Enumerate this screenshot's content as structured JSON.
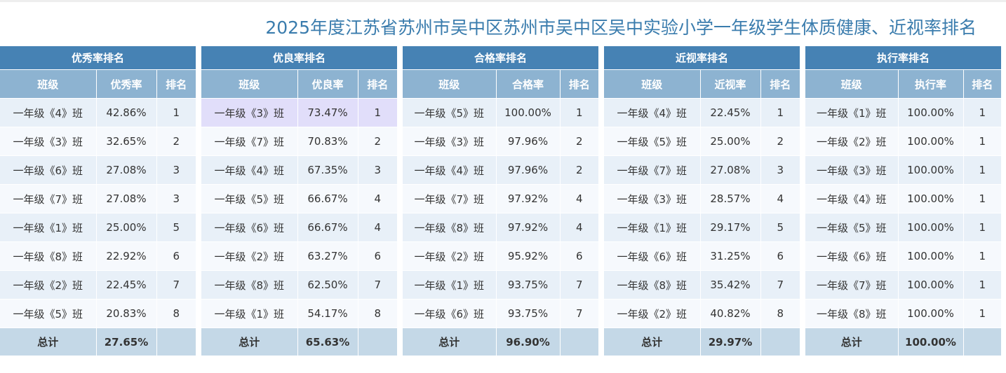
{
  "title": "2025年度江苏省苏州市吴中区苏州市吴中区吴中实验小学一年级学生体质健康、近视率排名",
  "labels": {
    "class": "班级",
    "rank": "排名",
    "total": "总计"
  },
  "tables": [
    {
      "caption": "优秀率排名",
      "value_header": "优秀率",
      "rows": [
        {
          "cls": "一年级《4》班",
          "val": "42.86%",
          "rank": "1"
        },
        {
          "cls": "一年级《3》班",
          "val": "32.65%",
          "rank": "2"
        },
        {
          "cls": "一年级《6》班",
          "val": "27.08%",
          "rank": "3"
        },
        {
          "cls": "一年级《7》班",
          "val": "27.08%",
          "rank": "3"
        },
        {
          "cls": "一年级《1》班",
          "val": "25.00%",
          "rank": "5"
        },
        {
          "cls": "一年级《8》班",
          "val": "22.92%",
          "rank": "6"
        },
        {
          "cls": "一年级《2》班",
          "val": "22.45%",
          "rank": "7"
        },
        {
          "cls": "一年级《5》班",
          "val": "20.83%",
          "rank": "8"
        }
      ],
      "total": "27.65%"
    },
    {
      "caption": "优良率排名",
      "value_header": "优良率",
      "rows": [
        {
          "cls": "一年级《3》班",
          "val": "73.47%",
          "rank": "1"
        },
        {
          "cls": "一年级《7》班",
          "val": "70.83%",
          "rank": "2"
        },
        {
          "cls": "一年级《4》班",
          "val": "67.35%",
          "rank": "3"
        },
        {
          "cls": "一年级《5》班",
          "val": "66.67%",
          "rank": "4"
        },
        {
          "cls": "一年级《6》班",
          "val": "66.67%",
          "rank": "4"
        },
        {
          "cls": "一年级《2》班",
          "val": "63.27%",
          "rank": "6"
        },
        {
          "cls": "一年级《8》班",
          "val": "62.50%",
          "rank": "7"
        },
        {
          "cls": "一年级《1》班",
          "val": "54.17%",
          "rank": "8"
        }
      ],
      "total": "65.63%"
    },
    {
      "caption": "合格率排名",
      "value_header": "合格率",
      "rows": [
        {
          "cls": "一年级《5》班",
          "val": "100.00%",
          "rank": "1"
        },
        {
          "cls": "一年级《3》班",
          "val": "97.96%",
          "rank": "2"
        },
        {
          "cls": "一年级《4》班",
          "val": "97.96%",
          "rank": "2"
        },
        {
          "cls": "一年级《7》班",
          "val": "97.92%",
          "rank": "4"
        },
        {
          "cls": "一年级《8》班",
          "val": "97.92%",
          "rank": "4"
        },
        {
          "cls": "一年级《2》班",
          "val": "95.92%",
          "rank": "6"
        },
        {
          "cls": "一年级《1》班",
          "val": "93.75%",
          "rank": "7"
        },
        {
          "cls": "一年级《6》班",
          "val": "93.75%",
          "rank": "7"
        }
      ],
      "total": "96.90%"
    },
    {
      "caption": "近视率排名",
      "value_header": "近视率",
      "rows": [
        {
          "cls": "一年级《4》班",
          "val": "22.45%",
          "rank": "1"
        },
        {
          "cls": "一年级《5》班",
          "val": "25.00%",
          "rank": "2"
        },
        {
          "cls": "一年级《7》班",
          "val": "27.08%",
          "rank": "3"
        },
        {
          "cls": "一年级《3》班",
          "val": "28.57%",
          "rank": "4"
        },
        {
          "cls": "一年级《1》班",
          "val": "29.17%",
          "rank": "5"
        },
        {
          "cls": "一年级《6》班",
          "val": "31.25%",
          "rank": "6"
        },
        {
          "cls": "一年级《8》班",
          "val": "35.42%",
          "rank": "7"
        },
        {
          "cls": "一年级《2》班",
          "val": "40.82%",
          "rank": "8"
        }
      ],
      "total": "29.97%"
    },
    {
      "caption": "执行率排名",
      "value_header": "执行率",
      "rows": [
        {
          "cls": "一年级《1》班",
          "val": "100.00%",
          "rank": "1"
        },
        {
          "cls": "一年级《2》班",
          "val": "100.00%",
          "rank": "1"
        },
        {
          "cls": "一年级《3》班",
          "val": "100.00%",
          "rank": "1"
        },
        {
          "cls": "一年级《4》班",
          "val": "100.00%",
          "rank": "1"
        },
        {
          "cls": "一年级《5》班",
          "val": "100.00%",
          "rank": "1"
        },
        {
          "cls": "一年级《6》班",
          "val": "100.00%",
          "rank": "1"
        },
        {
          "cls": "一年级《7》班",
          "val": "100.00%",
          "rank": "1"
        },
        {
          "cls": "一年级《8》班",
          "val": "100.00%",
          "rank": "1"
        }
      ],
      "total": "100.00%"
    }
  ],
  "colors": {
    "title": "#3a7cad",
    "caption_bg": "#4682b4",
    "header_bg": "#8db3d1",
    "row_odd": "#e8f0f8",
    "row_even": "#f6f9fd",
    "row_highlight": "#e1defa",
    "total_bg": "#c4d8e7"
  }
}
